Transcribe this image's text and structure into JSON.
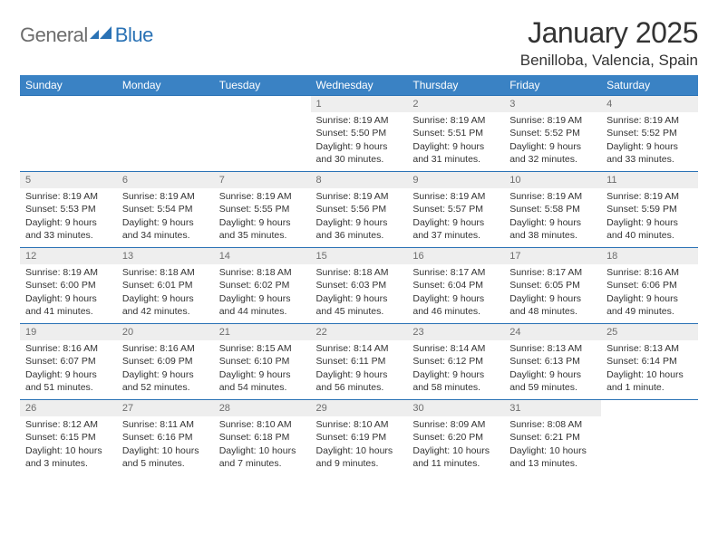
{
  "logo": {
    "text1": "General",
    "text2": "Blue"
  },
  "title": "January 2025",
  "location": "Benilloba, Valencia, Spain",
  "header_bg": "#3a82c4",
  "border_color": "#2a72b5",
  "daynum_bg": "#eeeeee",
  "weekdays": [
    "Sunday",
    "Monday",
    "Tuesday",
    "Wednesday",
    "Thursday",
    "Friday",
    "Saturday"
  ],
  "weeks": [
    [
      null,
      null,
      null,
      {
        "n": "1",
        "sr": "8:19 AM",
        "ss": "5:50 PM",
        "dl": "9 hours and 30 minutes."
      },
      {
        "n": "2",
        "sr": "8:19 AM",
        "ss": "5:51 PM",
        "dl": "9 hours and 31 minutes."
      },
      {
        "n": "3",
        "sr": "8:19 AM",
        "ss": "5:52 PM",
        "dl": "9 hours and 32 minutes."
      },
      {
        "n": "4",
        "sr": "8:19 AM",
        "ss": "5:52 PM",
        "dl": "9 hours and 33 minutes."
      }
    ],
    [
      {
        "n": "5",
        "sr": "8:19 AM",
        "ss": "5:53 PM",
        "dl": "9 hours and 33 minutes."
      },
      {
        "n": "6",
        "sr": "8:19 AM",
        "ss": "5:54 PM",
        "dl": "9 hours and 34 minutes."
      },
      {
        "n": "7",
        "sr": "8:19 AM",
        "ss": "5:55 PM",
        "dl": "9 hours and 35 minutes."
      },
      {
        "n": "8",
        "sr": "8:19 AM",
        "ss": "5:56 PM",
        "dl": "9 hours and 36 minutes."
      },
      {
        "n": "9",
        "sr": "8:19 AM",
        "ss": "5:57 PM",
        "dl": "9 hours and 37 minutes."
      },
      {
        "n": "10",
        "sr": "8:19 AM",
        "ss": "5:58 PM",
        "dl": "9 hours and 38 minutes."
      },
      {
        "n": "11",
        "sr": "8:19 AM",
        "ss": "5:59 PM",
        "dl": "9 hours and 40 minutes."
      }
    ],
    [
      {
        "n": "12",
        "sr": "8:19 AM",
        "ss": "6:00 PM",
        "dl": "9 hours and 41 minutes."
      },
      {
        "n": "13",
        "sr": "8:18 AM",
        "ss": "6:01 PM",
        "dl": "9 hours and 42 minutes."
      },
      {
        "n": "14",
        "sr": "8:18 AM",
        "ss": "6:02 PM",
        "dl": "9 hours and 44 minutes."
      },
      {
        "n": "15",
        "sr": "8:18 AM",
        "ss": "6:03 PM",
        "dl": "9 hours and 45 minutes."
      },
      {
        "n": "16",
        "sr": "8:17 AM",
        "ss": "6:04 PM",
        "dl": "9 hours and 46 minutes."
      },
      {
        "n": "17",
        "sr": "8:17 AM",
        "ss": "6:05 PM",
        "dl": "9 hours and 48 minutes."
      },
      {
        "n": "18",
        "sr": "8:16 AM",
        "ss": "6:06 PM",
        "dl": "9 hours and 49 minutes."
      }
    ],
    [
      {
        "n": "19",
        "sr": "8:16 AM",
        "ss": "6:07 PM",
        "dl": "9 hours and 51 minutes."
      },
      {
        "n": "20",
        "sr": "8:16 AM",
        "ss": "6:09 PM",
        "dl": "9 hours and 52 minutes."
      },
      {
        "n": "21",
        "sr": "8:15 AM",
        "ss": "6:10 PM",
        "dl": "9 hours and 54 minutes."
      },
      {
        "n": "22",
        "sr": "8:14 AM",
        "ss": "6:11 PM",
        "dl": "9 hours and 56 minutes."
      },
      {
        "n": "23",
        "sr": "8:14 AM",
        "ss": "6:12 PM",
        "dl": "9 hours and 58 minutes."
      },
      {
        "n": "24",
        "sr": "8:13 AM",
        "ss": "6:13 PM",
        "dl": "9 hours and 59 minutes."
      },
      {
        "n": "25",
        "sr": "8:13 AM",
        "ss": "6:14 PM",
        "dl": "10 hours and 1 minute."
      }
    ],
    [
      {
        "n": "26",
        "sr": "8:12 AM",
        "ss": "6:15 PM",
        "dl": "10 hours and 3 minutes."
      },
      {
        "n": "27",
        "sr": "8:11 AM",
        "ss": "6:16 PM",
        "dl": "10 hours and 5 minutes."
      },
      {
        "n": "28",
        "sr": "8:10 AM",
        "ss": "6:18 PM",
        "dl": "10 hours and 7 minutes."
      },
      {
        "n": "29",
        "sr": "8:10 AM",
        "ss": "6:19 PM",
        "dl": "10 hours and 9 minutes."
      },
      {
        "n": "30",
        "sr": "8:09 AM",
        "ss": "6:20 PM",
        "dl": "10 hours and 11 minutes."
      },
      {
        "n": "31",
        "sr": "8:08 AM",
        "ss": "6:21 PM",
        "dl": "10 hours and 13 minutes."
      },
      null
    ]
  ],
  "labels": {
    "sunrise": "Sunrise:",
    "sunset": "Sunset:",
    "daylight": "Daylight:"
  }
}
